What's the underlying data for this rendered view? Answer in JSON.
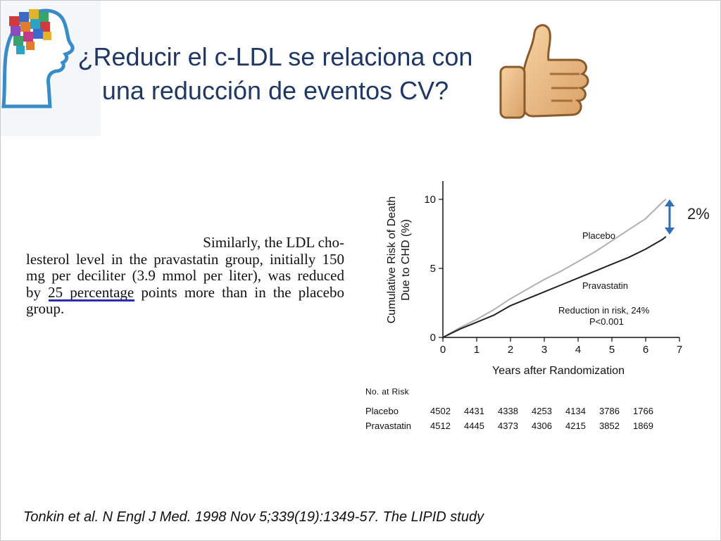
{
  "slide": {
    "title_line1": "¿Reducir el c-LDL se relaciona con",
    "title_line2": "una reducción de eventos CV?",
    "excerpt": {
      "line1": "Similarly, the LDL cho-",
      "line2": "lesterol level in the pravastatin group, initially 150",
      "line3": "mg per deciliter (3.9 mmol per liter), was reduced",
      "line4": "by 25 percentage points more than in the placebo",
      "line5": "group."
    },
    "diff_label": "2%",
    "citation": "Tonkin et al. N Engl J Med. 1998 Nov 5;339(19):1349-57. The LIPID study",
    "icons": {
      "logo": "brain-puzzle-logo-icon",
      "thumbs_up": "thumbs-up-icon",
      "arrow": "double-arrow-icon"
    },
    "colors": {
      "title": "#1f3864",
      "underline": "#2a2fb0",
      "arrow": "#2e6fb8",
      "placebo_line": "#b0b0b0",
      "pravastatin_line": "#222222"
    }
  },
  "chart_data": {
    "type": "line",
    "ylabel_line1": "Cumulative Risk of Death",
    "ylabel_line2": "Due to CHD (%)",
    "xlabel": "Years after Randomization",
    "xlim": [
      0,
      7
    ],
    "ylim": [
      0,
      10
    ],
    "xticks": [
      "0",
      "1",
      "2",
      "3",
      "4",
      "5",
      "6",
      "7"
    ],
    "yticks": [
      "0",
      "5",
      "10"
    ],
    "series": [
      {
        "name": "Placebo",
        "x": [
          0,
          0.5,
          1,
          1.5,
          2,
          2.5,
          3,
          3.5,
          4,
          4.5,
          5,
          5.5,
          6,
          6.5,
          6.6
        ],
        "y": [
          0,
          0.7,
          1.3,
          2.0,
          2.8,
          3.5,
          4.2,
          4.8,
          5.5,
          6.2,
          7.0,
          7.8,
          8.6,
          9.8,
          10.0
        ]
      },
      {
        "name": "Pravastatin",
        "x": [
          0,
          0.5,
          1,
          1.5,
          2,
          2.5,
          3,
          3.5,
          4,
          4.5,
          5,
          5.5,
          6,
          6.5,
          6.6
        ],
        "y": [
          0,
          0.6,
          1.1,
          1.6,
          2.3,
          2.8,
          3.3,
          3.8,
          4.3,
          4.8,
          5.3,
          5.8,
          6.4,
          7.1,
          7.3
        ]
      }
    ],
    "annotation_line1": "Reduction in risk, 24%",
    "annotation_line2": "P<0.001",
    "at_risk": {
      "header": "No. at Risk",
      "rows": [
        {
          "label": "Placebo",
          "values": [
            "4502",
            "4431",
            "4338",
            "4253",
            "4134",
            "3786",
            "1766"
          ]
        },
        {
          "label": "Pravastatin",
          "values": [
            "4512",
            "4445",
            "4373",
            "4306",
            "4215",
            "3852",
            "1869"
          ]
        }
      ]
    }
  }
}
